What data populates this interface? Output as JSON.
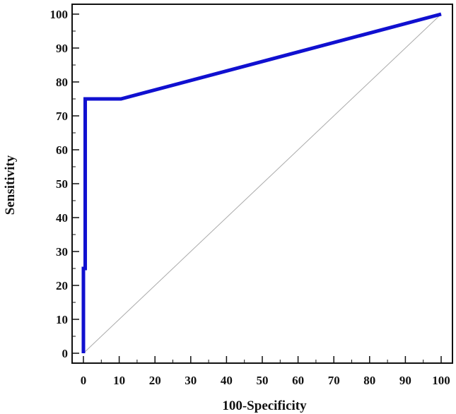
{
  "chart_data": {
    "type": "line",
    "title": "",
    "xlabel": "100-Specificity",
    "ylabel": "Sensitivity",
    "xlim": [
      0,
      100
    ],
    "ylim": [
      0,
      100
    ],
    "xticks": [
      0,
      10,
      20,
      30,
      40,
      50,
      60,
      70,
      80,
      90,
      100
    ],
    "yticks": [
      0,
      10,
      20,
      30,
      40,
      50,
      60,
      70,
      80,
      90,
      100
    ],
    "grid": false,
    "legend": "none",
    "series": [
      {
        "color": "#1010d0",
        "x": [
          0,
          0,
          0.5,
          0.5,
          10.5,
          100
        ],
        "y": [
          0,
          25,
          25,
          75,
          75,
          100
        ]
      }
    ],
    "reference_line": {
      "color": "#aaaaaa",
      "x": [
        0,
        100
      ],
      "y": [
        0,
        100
      ]
    }
  }
}
